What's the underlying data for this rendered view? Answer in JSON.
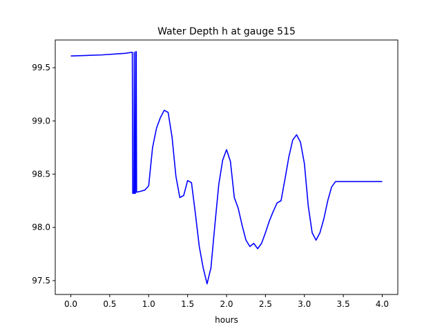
{
  "chart_data": {
    "type": "line",
    "title": "Water Depth h at gauge 515",
    "xlabel": "hours",
    "ylabel": "",
    "xlim": [
      -0.2,
      4.2
    ],
    "ylim": [
      97.37,
      99.76
    ],
    "xticks": [
      0.0,
      0.5,
      1.0,
      1.5,
      2.0,
      2.5,
      3.0,
      3.5,
      4.0
    ],
    "xtick_labels": [
      "0.0",
      "0.5",
      "1.0",
      "1.5",
      "2.0",
      "2.5",
      "3.0",
      "3.5",
      "4.0"
    ],
    "yticks": [
      97.5,
      98.0,
      98.5,
      99.0,
      99.5
    ],
    "ytick_labels": [
      "97.5",
      "98.0",
      "98.5",
      "99.0",
      "99.5"
    ],
    "grid": false,
    "series": [
      {
        "color": "#0000ff",
        "x": [
          0.0,
          0.2,
          0.4,
          0.6,
          0.7,
          0.79,
          0.795,
          0.81,
          0.815,
          0.82,
          0.83,
          0.835,
          0.84,
          0.845,
          0.9,
          0.95,
          1.0,
          1.05,
          1.1,
          1.15,
          1.2,
          1.25,
          1.3,
          1.35,
          1.4,
          1.45,
          1.5,
          1.55,
          1.6,
          1.65,
          1.7,
          1.75,
          1.8,
          1.85,
          1.9,
          1.95,
          2.0,
          2.05,
          2.1,
          2.15,
          2.2,
          2.25,
          2.3,
          2.35,
          2.4,
          2.45,
          2.5,
          2.55,
          2.6,
          2.65,
          2.7,
          2.75,
          2.8,
          2.85,
          2.9,
          2.95,
          3.0,
          3.05,
          3.1,
          3.15,
          3.2,
          3.25,
          3.3,
          3.35,
          3.4,
          3.45,
          3.5,
          3.55,
          3.6,
          3.65,
          3.7,
          3.75,
          3.8,
          3.85,
          3.9,
          3.95,
          4.0
        ],
        "y": [
          99.61,
          99.615,
          99.62,
          99.63,
          99.635,
          99.645,
          98.32,
          98.32,
          99.645,
          98.32,
          98.32,
          99.65,
          99.65,
          98.33,
          98.34,
          98.35,
          98.39,
          98.75,
          98.93,
          99.03,
          99.1,
          99.08,
          98.85,
          98.48,
          98.28,
          98.3,
          98.44,
          98.42,
          98.13,
          97.82,
          97.62,
          97.47,
          97.62,
          98.02,
          98.4,
          98.63,
          98.73,
          98.62,
          98.28,
          98.18,
          98.02,
          97.88,
          97.82,
          97.85,
          97.8,
          97.85,
          97.95,
          98.06,
          98.15,
          98.23,
          98.25,
          98.45,
          98.66,
          98.82,
          98.87,
          98.8,
          98.6,
          98.2,
          97.95,
          97.88,
          97.95,
          98.08,
          98.25,
          98.38,
          98.43,
          98.43,
          98.43,
          98.43,
          98.43,
          98.43,
          98.43,
          98.43,
          98.43,
          98.43,
          98.43,
          98.43,
          98.43
        ]
      }
    ]
  }
}
